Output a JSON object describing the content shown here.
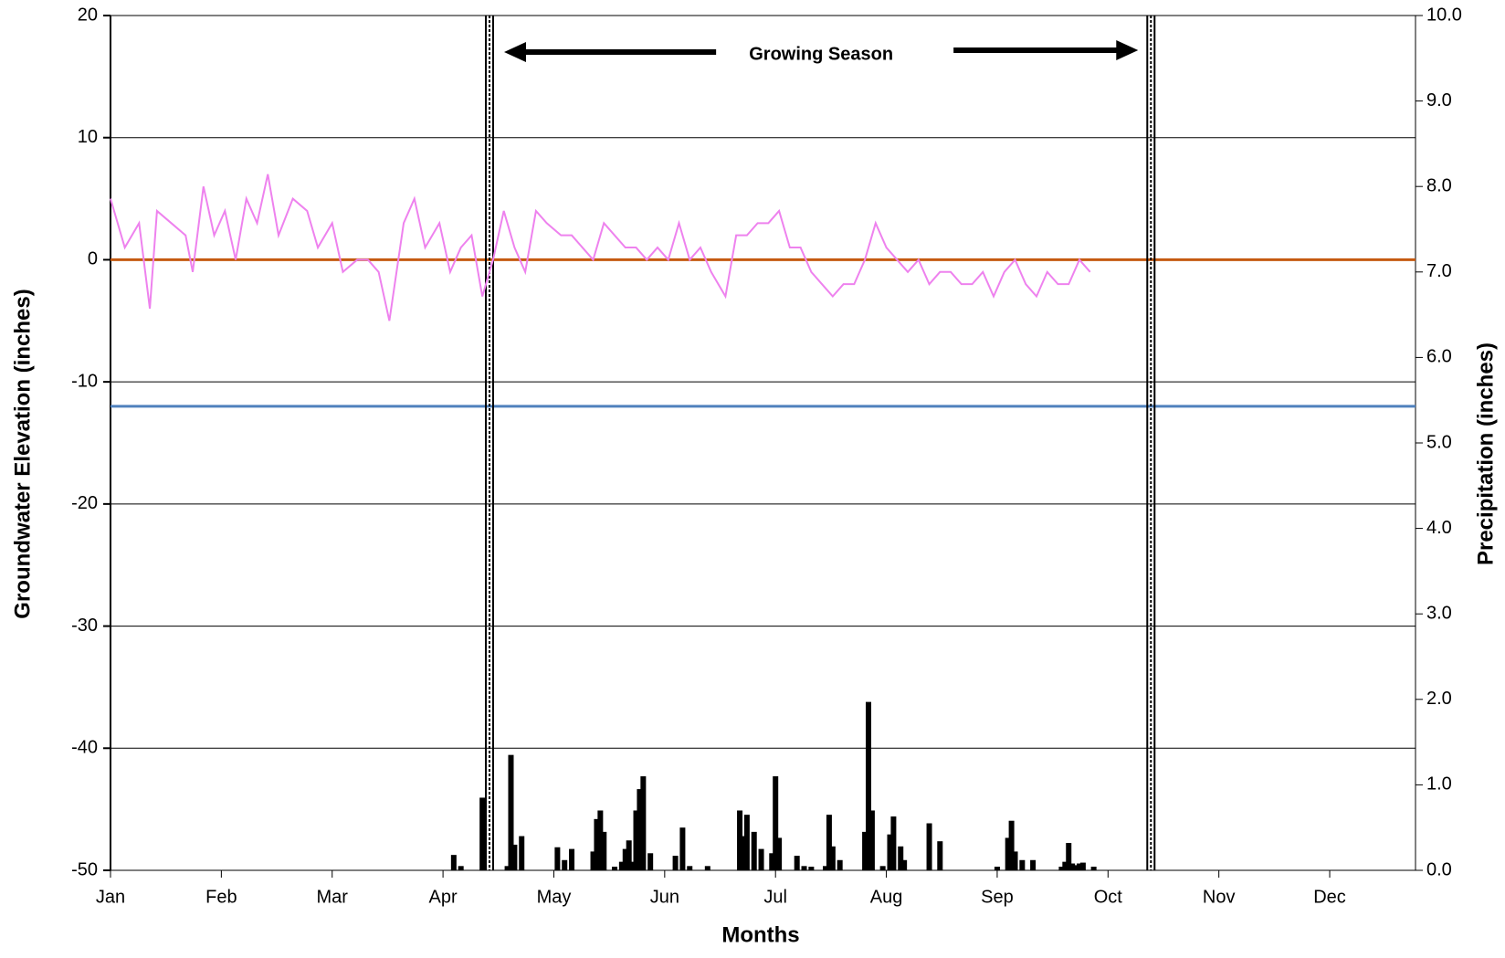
{
  "chart_data": {
    "type": "combo",
    "x_label": "Months",
    "y_label": "Groundwater Elevation (inches)",
    "y2_label": "Precipitation (inches)",
    "annotation": "Growing Season",
    "xlim": [
      0,
      365
    ],
    "xticks": [
      {
        "value": 0,
        "label": "Jan"
      },
      {
        "value": 31,
        "label": "Feb"
      },
      {
        "value": 62,
        "label": "Mar"
      },
      {
        "value": 93,
        "label": "Apr"
      },
      {
        "value": 124,
        "label": "May"
      },
      {
        "value": 155,
        "label": "Jun"
      },
      {
        "value": 186,
        "label": "Jul"
      },
      {
        "value": 217,
        "label": "Aug"
      },
      {
        "value": 248,
        "label": "Sep"
      },
      {
        "value": 279,
        "label": "Oct"
      },
      {
        "value": 310,
        "label": "Nov"
      },
      {
        "value": 341,
        "label": "Dec"
      }
    ],
    "ylim": [
      -50,
      20
    ],
    "yticks": [
      20,
      10,
      0,
      -10,
      -20,
      -30,
      -40,
      -50
    ],
    "y2lim": [
      0,
      10
    ],
    "y2ticks": [
      {
        "value": 0,
        "label": "0.0"
      },
      {
        "value": 1,
        "label": "1.0"
      },
      {
        "value": 2,
        "label": "2.0"
      },
      {
        "value": 3,
        "label": "3.0"
      },
      {
        "value": 4,
        "label": "4.0"
      },
      {
        "value": 5,
        "label": "5.0"
      },
      {
        "value": 6,
        "label": "6.0"
      },
      {
        "value": 7,
        "label": "7.0"
      },
      {
        "value": 8,
        "label": "8.0"
      },
      {
        "value": 9,
        "label": "9.0"
      },
      {
        "value": 10,
        "label": "10.0"
      }
    ],
    "grid": true,
    "reference_lines": [
      {
        "value": 0,
        "color": "#c55a11"
      },
      {
        "value": -12,
        "color": "#4f81bd"
      }
    ],
    "vertical_lines": [
      106,
      291
    ],
    "series": [
      {
        "type": "line",
        "color": "#ee82ee",
        "x": [
          0,
          4,
          8,
          11,
          13,
          17,
          21,
          23,
          26,
          29,
          32,
          35,
          38,
          41,
          44,
          47,
          51,
          55,
          58,
          62,
          65,
          69,
          72,
          75,
          78,
          82,
          85,
          88,
          92,
          95,
          98,
          101,
          104,
          107,
          110,
          113,
          116,
          119,
          122,
          126,
          129,
          132,
          135,
          138,
          141,
          144,
          147,
          150,
          153,
          156,
          159,
          162,
          165,
          168,
          172,
          175,
          178,
          181,
          184,
          187,
          190,
          193,
          196,
          199,
          202,
          205,
          208,
          211,
          214,
          217,
          220,
          223,
          226,
          229,
          232,
          235,
          238,
          241,
          244,
          247,
          250,
          253,
          256,
          259,
          262,
          265,
          268,
          271,
          274
        ],
        "values": [
          5,
          1,
          3,
          -4,
          4,
          3,
          2,
          -1,
          6,
          2,
          4,
          0,
          5,
          3,
          7,
          2,
          5,
          4,
          1,
          3,
          -1,
          0,
          0,
          -1,
          -5,
          3,
          5,
          1,
          3,
          -1,
          1,
          2,
          -3,
          0,
          4,
          1,
          -1,
          4,
          3,
          2,
          2,
          1,
          0,
          3,
          2,
          1,
          1,
          0,
          1,
          0,
          3,
          0,
          1,
          -1,
          -3,
          2,
          2,
          3,
          3,
          4,
          1,
          1,
          -1,
          -2,
          -3,
          -2,
          -2,
          0,
          3,
          1,
          0,
          -1,
          0,
          -2,
          -1,
          -1,
          -2,
          -2,
          -1,
          -3,
          -1,
          0,
          -2,
          -3,
          -1,
          -2,
          -2,
          0,
          -1
        ]
      },
      {
        "type": "bar",
        "axis": "y2",
        "color": "#000000",
        "x": [
          96,
          98,
          104,
          111,
          112,
          113,
          115,
          125,
          127,
          129,
          135,
          136,
          137,
          138,
          141,
          143,
          144,
          145,
          146,
          147,
          148,
          149,
          151,
          158,
          160,
          162,
          167,
          176,
          177,
          178,
          180,
          182,
          185,
          186,
          187,
          192,
          194,
          196,
          200,
          201,
          202,
          204,
          211,
          212,
          213,
          216,
          218,
          219,
          221,
          222,
          229,
          232,
          248,
          251,
          252,
          253,
          255,
          258,
          266,
          267,
          268,
          269,
          270,
          271,
          272,
          275
        ],
        "values": [
          0.18,
          0.05,
          0.85,
          0.05,
          1.35,
          0.3,
          0.4,
          0.27,
          0.12,
          0.25,
          0.22,
          0.6,
          0.7,
          0.45,
          0.03,
          0.1,
          0.25,
          0.35,
          0.1,
          0.7,
          0.95,
          1.1,
          0.2,
          0.17,
          0.5,
          0.05,
          0.05,
          0.7,
          0.4,
          0.65,
          0.45,
          0.25,
          0.2,
          1.1,
          0.38,
          0.17,
          0.05,
          0.04,
          0.05,
          0.65,
          0.28,
          0.12,
          0.45,
          1.97,
          0.7,
          0.05,
          0.42,
          0.63,
          0.28,
          0.12,
          0.55,
          0.34,
          0.02,
          0.38,
          0.58,
          0.22,
          0.12,
          0.12,
          0.04,
          0.1,
          0.32,
          0.08,
          0.06,
          0.08,
          0.09,
          0.02
        ]
      }
    ]
  }
}
